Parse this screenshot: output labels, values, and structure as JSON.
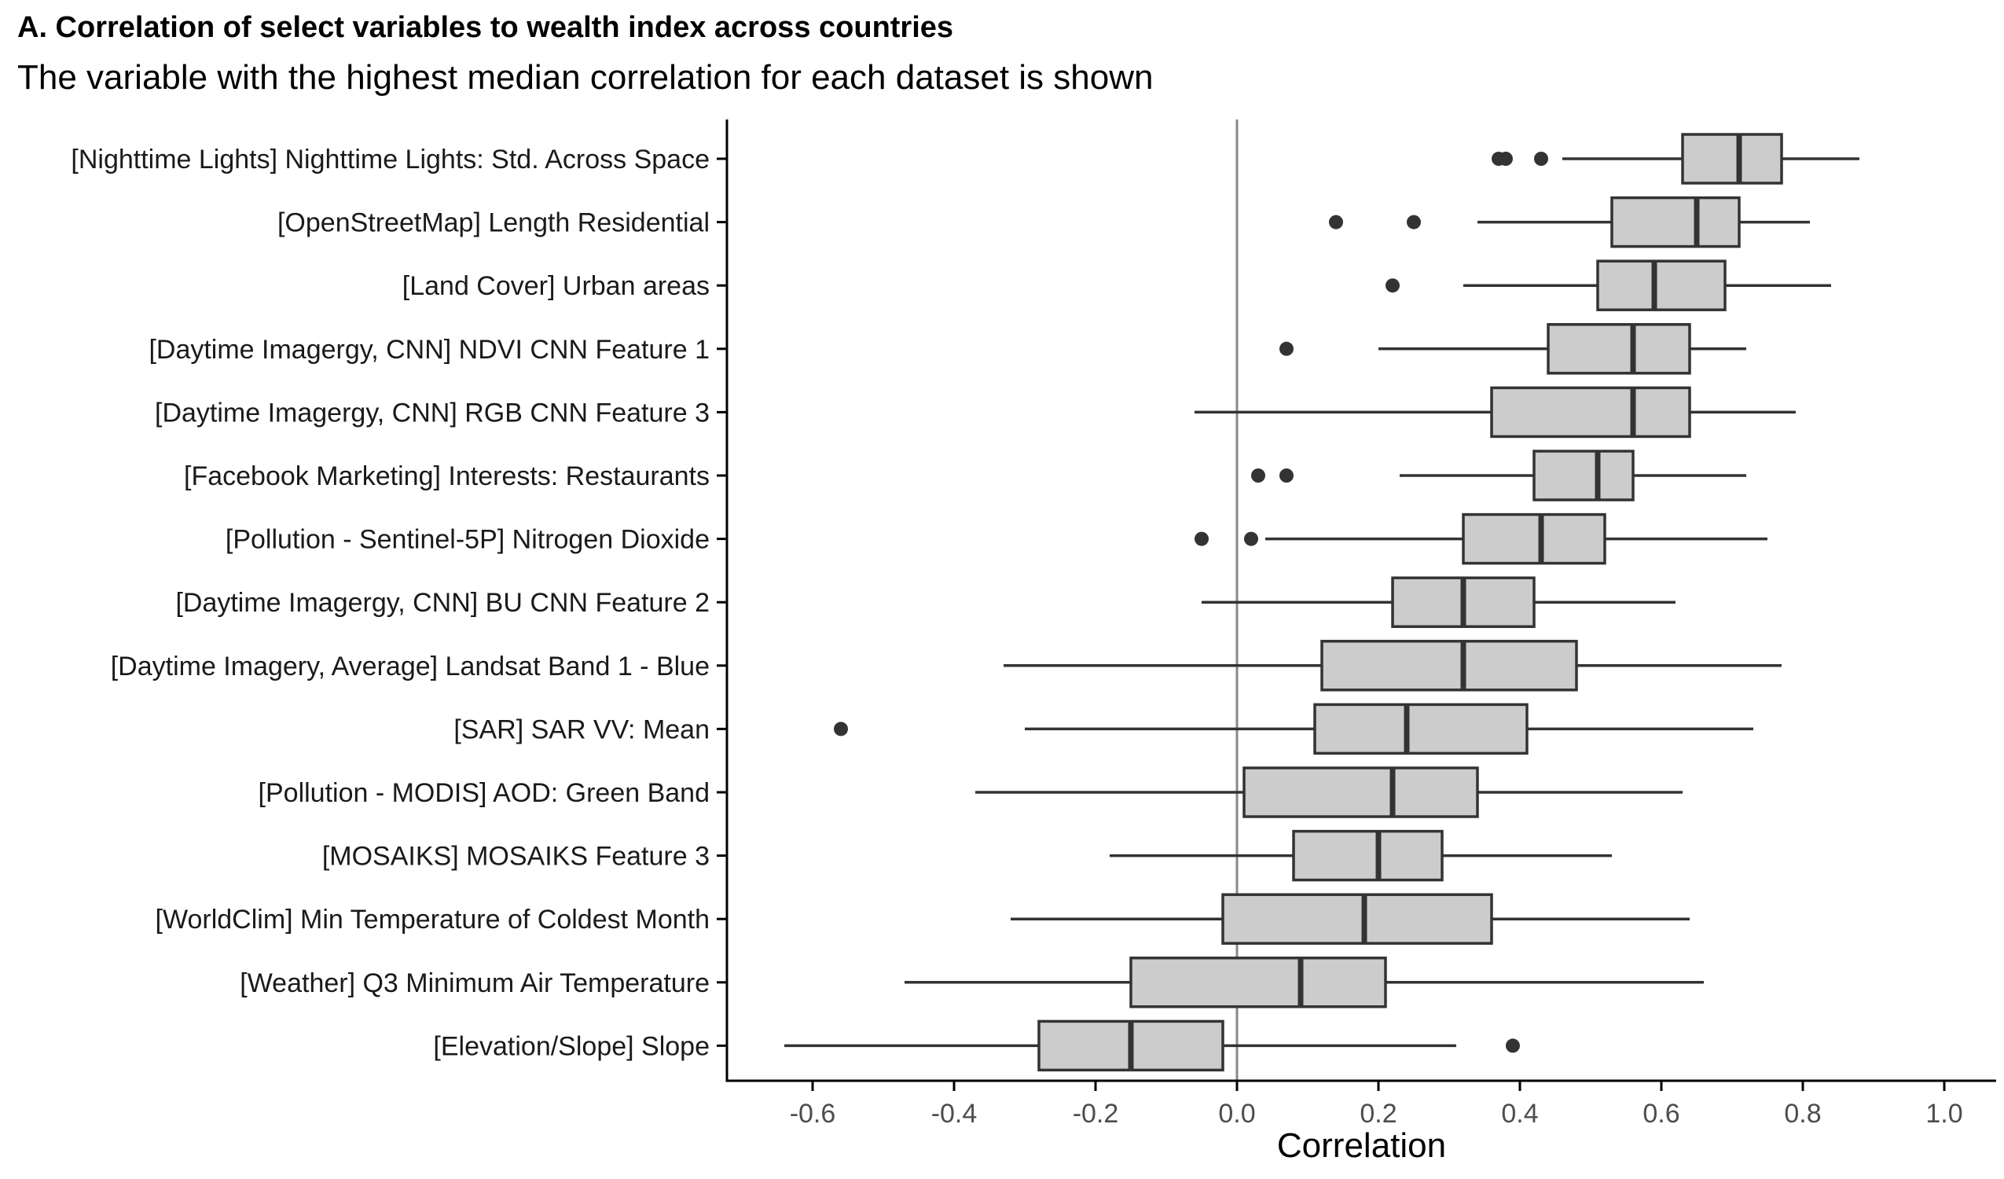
{
  "chart_data": {
    "type": "boxplot",
    "orientation": "horizontal",
    "title": "A. Correlation of select variables to wealth index across countries",
    "subtitle": "The variable with the highest median correlation for each dataset is shown",
    "xlabel": "Correlation",
    "ylabel": "",
    "xlim": [
      -0.72,
      1.08
    ],
    "xticks": [
      "-0.6",
      "-0.4",
      "-0.2",
      "0.0",
      "0.2",
      "0.4",
      "0.6",
      "0.8",
      "1.0"
    ],
    "xtick_values": [
      -0.6,
      -0.4,
      -0.2,
      0.0,
      0.2,
      0.4,
      0.6,
      0.8,
      1.0
    ],
    "reference_line": 0.0,
    "grid": false,
    "colors": {
      "box_fill": "#cccccc",
      "box_stroke": "#333333",
      "outlier": "#333333",
      "reference_line": "#888888",
      "axis": "#000000"
    },
    "series": [
      {
        "label": "[Nighttime Lights] Nighttime Lights: Std. Across Space",
        "whisker_low": 0.46,
        "q1": 0.63,
        "median": 0.71,
        "q3": 0.77,
        "whisker_high": 0.88,
        "outliers": [
          0.37,
          0.38,
          0.43
        ]
      },
      {
        "label": "[OpenStreetMap] Length Residential",
        "whisker_low": 0.34,
        "q1": 0.53,
        "median": 0.65,
        "q3": 0.71,
        "whisker_high": 0.81,
        "outliers": [
          0.14,
          0.25
        ]
      },
      {
        "label": "[Land Cover] Urban areas",
        "whisker_low": 0.32,
        "q1": 0.51,
        "median": 0.59,
        "q3": 0.69,
        "whisker_high": 0.84,
        "outliers": [
          0.22
        ]
      },
      {
        "label": "[Daytime Imagergy, CNN] NDVI CNN Feature 1",
        "whisker_low": 0.2,
        "q1": 0.44,
        "median": 0.56,
        "q3": 0.64,
        "whisker_high": 0.72,
        "outliers": [
          0.07
        ]
      },
      {
        "label": "[Daytime Imagergy, CNN] RGB CNN Feature 3",
        "whisker_low": -0.06,
        "q1": 0.36,
        "median": 0.56,
        "q3": 0.64,
        "whisker_high": 0.79,
        "outliers": []
      },
      {
        "label": "[Facebook Marketing] Interests: Restaurants",
        "whisker_low": 0.23,
        "q1": 0.42,
        "median": 0.51,
        "q3": 0.56,
        "whisker_high": 0.72,
        "outliers": [
          0.03,
          0.07
        ]
      },
      {
        "label": "[Pollution - Sentinel-5P] Nitrogen Dioxide",
        "whisker_low": 0.04,
        "q1": 0.32,
        "median": 0.43,
        "q3": 0.52,
        "whisker_high": 0.75,
        "outliers": [
          -0.05,
          0.02
        ]
      },
      {
        "label": "[Daytime Imagergy, CNN] BU CNN Feature 2",
        "whisker_low": -0.05,
        "q1": 0.22,
        "median": 0.32,
        "q3": 0.42,
        "whisker_high": 0.62,
        "outliers": []
      },
      {
        "label": "[Daytime Imagery, Average] Landsat Band 1 - Blue",
        "whisker_low": -0.33,
        "q1": 0.12,
        "median": 0.32,
        "q3": 0.48,
        "whisker_high": 0.77,
        "outliers": []
      },
      {
        "label": "[SAR] SAR VV: Mean",
        "whisker_low": -0.3,
        "q1": 0.11,
        "median": 0.24,
        "q3": 0.41,
        "whisker_high": 0.73,
        "outliers": [
          -0.56
        ]
      },
      {
        "label": "[Pollution - MODIS] AOD: Green Band",
        "whisker_low": -0.37,
        "q1": 0.01,
        "median": 0.22,
        "q3": 0.34,
        "whisker_high": 0.63,
        "outliers": []
      },
      {
        "label": "[MOSAIKS] MOSAIKS Feature 3",
        "whisker_low": -0.18,
        "q1": 0.08,
        "median": 0.2,
        "q3": 0.29,
        "whisker_high": 0.53,
        "outliers": []
      },
      {
        "label": "[WorldClim] Min Temperature of Coldest Month",
        "whisker_low": -0.32,
        "q1": -0.02,
        "median": 0.18,
        "q3": 0.36,
        "whisker_high": 0.64,
        "outliers": []
      },
      {
        "label": "[Weather] Q3 Minimum Air Temperature",
        "whisker_low": -0.47,
        "q1": -0.15,
        "median": 0.09,
        "q3": 0.21,
        "whisker_high": 0.66,
        "outliers": []
      },
      {
        "label": "[Elevation/Slope] Slope",
        "whisker_low": -0.64,
        "q1": -0.28,
        "median": -0.15,
        "q3": -0.02,
        "whisker_high": 0.31,
        "outliers": [
          0.39
        ]
      }
    ]
  }
}
